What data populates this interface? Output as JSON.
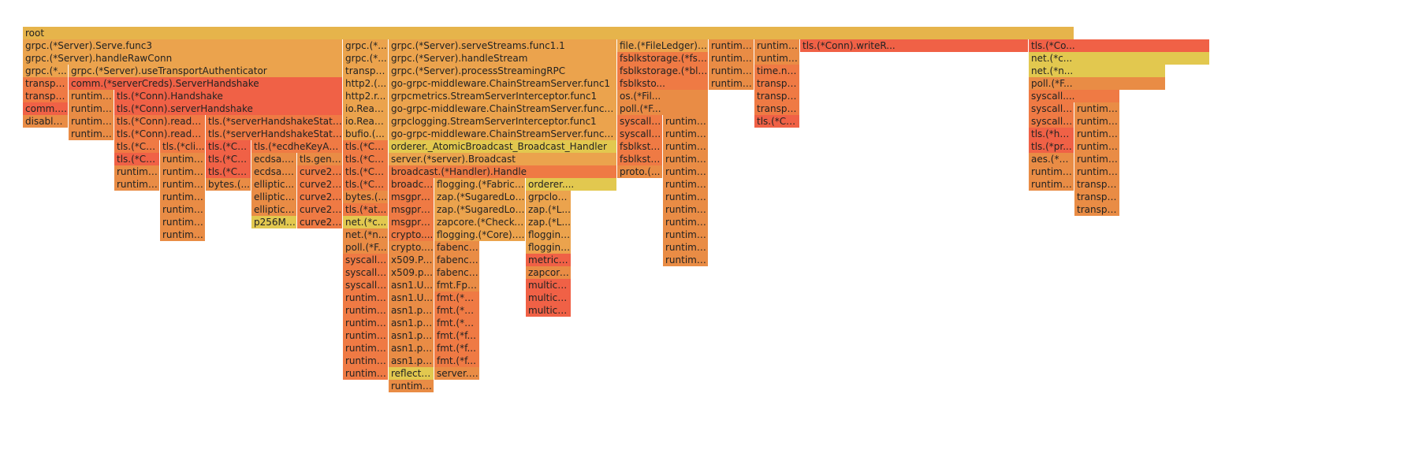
{
  "palette": {
    "gold": "#e6b44b",
    "lt": "#eba34d",
    "md": "#e98c45",
    "dk": "#ef7a44",
    "red": "#f06146",
    "yel": "#e2c84f"
  },
  "frames": [
    {
      "text": "root",
      "color": "gold"
    },
    {
      "text": "grpc.(*Server).Serve.func3",
      "color": "lt"
    },
    {
      "text": "grpc.(*Server).handleRawConn",
      "color": "lt"
    },
    {
      "text": "grpc.(*...",
      "color": "lt"
    },
    {
      "text": "transpo...",
      "color": "dk"
    },
    {
      "text": "transpo...",
      "color": "dk"
    },
    {
      "text": "comm.(...",
      "color": "red"
    },
    {
      "text": "disable...",
      "color": "md"
    },
    {
      "text": "grpc.(*Server).useTransportAuthenticator",
      "color": "lt"
    },
    {
      "text": "comm.(*serverCreds).ServerHandshake",
      "color": "red"
    },
    {
      "text": "runtime...",
      "color": "md"
    },
    {
      "text": "runtime...",
      "color": "md"
    },
    {
      "text": "runtime...",
      "color": "md"
    },
    {
      "text": "runtime...",
      "color": "md"
    },
    {
      "text": "tls.(*Conn).Handshake",
      "color": "red"
    },
    {
      "text": "tls.(*Conn).serverHandshake",
      "color": "red"
    },
    {
      "text": "tls.(*Conn).readCli...",
      "color": "dk"
    },
    {
      "text": "tls.(*Conn).readH...",
      "color": "dk"
    },
    {
      "text": "tls.(*Co...",
      "color": "dk"
    },
    {
      "text": "tls.(*Co...",
      "color": "red"
    },
    {
      "text": "runtime...",
      "color": "md"
    },
    {
      "text": "runtime...",
      "color": "md"
    },
    {
      "text": "tls.(*cli...",
      "color": "dk"
    },
    {
      "text": "runtime...",
      "color": "md"
    },
    {
      "text": "runtime...",
      "color": "md"
    },
    {
      "text": "runtime...",
      "color": "md"
    },
    {
      "text": "runtime...",
      "color": "md"
    },
    {
      "text": "runtime...",
      "color": "md"
    },
    {
      "text": "runtime...",
      "color": "md"
    },
    {
      "text": "runtime...",
      "color": "md"
    },
    {
      "text": "tls.(*serverHandshakeState)...",
      "color": "dk"
    },
    {
      "text": "tls.(*serverHandshakeState)....",
      "color": "dk"
    },
    {
      "text": "tls.(*Co...",
      "color": "red"
    },
    {
      "text": "tls.(*Co...",
      "color": "red"
    },
    {
      "text": "tls.(*Co...",
      "color": "red"
    },
    {
      "text": "bytes.(...",
      "color": "md"
    },
    {
      "text": "tls.(*ecdheKeyAgr...",
      "color": "dk"
    },
    {
      "text": "ecdsa.(...",
      "color": "md"
    },
    {
      "text": "ecdsa.S...",
      "color": "md"
    },
    {
      "text": "elliptic...",
      "color": "md"
    },
    {
      "text": "elliptic....",
      "color": "md"
    },
    {
      "text": "elliptic....",
      "color": "md"
    },
    {
      "text": "p256Mu...",
      "color": "yel"
    },
    {
      "text": "tls.gene...",
      "color": "md"
    },
    {
      "text": "curve25...",
      "color": "dk"
    },
    {
      "text": "curve25...",
      "color": "dk"
    },
    {
      "text": "curve25...",
      "color": "dk"
    },
    {
      "text": "curve25...",
      "color": "dk"
    },
    {
      "text": "curve25...",
      "color": "dk"
    },
    {
      "text": "grpc.(*...",
      "color": "lt"
    },
    {
      "text": "grpc.(*...",
      "color": "lt"
    },
    {
      "text": "transpo...",
      "color": "lt"
    },
    {
      "text": "http2.(...",
      "color": "lt"
    },
    {
      "text": "http2.r...",
      "color": "lt"
    },
    {
      "text": "io.Read...",
      "color": "lt"
    },
    {
      "text": "io.Read...",
      "color": "lt"
    },
    {
      "text": "bufio.(...",
      "color": "lt"
    },
    {
      "text": "tls.(*Co...",
      "color": "dk"
    },
    {
      "text": "tls.(*Co...",
      "color": "dk"
    },
    {
      "text": "tls.(*Co...",
      "color": "dk"
    },
    {
      "text": "tls.(*Co...",
      "color": "dk"
    },
    {
      "text": "bytes.(...",
      "color": "md"
    },
    {
      "text": "tls.(*at...",
      "color": "dk"
    },
    {
      "text": "net.(*c...",
      "color": "yel"
    },
    {
      "text": "net.(*n...",
      "color": "md"
    },
    {
      "text": "poll.(*F...",
      "color": "md"
    },
    {
      "text": "syscall....",
      "color": "dk"
    },
    {
      "text": "syscall....",
      "color": "dk"
    },
    {
      "text": "syscall....",
      "color": "dk"
    },
    {
      "text": "runtime...",
      "color": "dk"
    },
    {
      "text": "runtime...",
      "color": "dk"
    },
    {
      "text": "runtime...",
      "color": "dk"
    },
    {
      "text": "runtime...",
      "color": "dk"
    },
    {
      "text": "runtime...",
      "color": "dk"
    },
    {
      "text": "runtime...",
      "color": "dk"
    },
    {
      "text": "runtime...",
      "color": "dk"
    },
    {
      "text": "grpc.(*Server).serveStreams.func1.1",
      "color": "lt"
    },
    {
      "text": "grpc.(*Server).handleStream",
      "color": "lt"
    },
    {
      "text": "grpc.(*Server).processStreamingRPC",
      "color": "lt"
    },
    {
      "text": "go-grpc-middleware.ChainStreamServer.func1",
      "color": "lt"
    },
    {
      "text": "grpcmetrics.StreamServerInterceptor.func1",
      "color": "lt"
    },
    {
      "text": "go-grpc-middleware.ChainStreamServer.func1.1",
      "color": "lt"
    },
    {
      "text": "grpclogging.StreamServerInterceptor.func1",
      "color": "lt"
    },
    {
      "text": "go-grpc-middleware.ChainStreamServer.func1.1",
      "color": "lt"
    },
    {
      "text": "orderer._AtomicBroadcast_Broadcast_Handler",
      "color": "yel"
    },
    {
      "text": "server.(*server).Broadcast",
      "color": "lt"
    },
    {
      "text": "broadcast.(*Handler).Handle",
      "color": "dk"
    },
    {
      "text": "broadca...",
      "color": "dk"
    },
    {
      "text": "msgpro...",
      "color": "dk"
    },
    {
      "text": "msgpro...",
      "color": "dk"
    },
    {
      "text": "msgpro...",
      "color": "dk"
    },
    {
      "text": "crypto....",
      "color": "dk"
    },
    {
      "text": "crypto.c...",
      "color": "md"
    },
    {
      "text": "x509.Pa...",
      "color": "md"
    },
    {
      "text": "x509.p...",
      "color": "md"
    },
    {
      "text": "asn1.U...",
      "color": "md"
    },
    {
      "text": "asn1.U...",
      "color": "md"
    },
    {
      "text": "asn1.pa...",
      "color": "md"
    },
    {
      "text": "asn1.pa...",
      "color": "md"
    },
    {
      "text": "asn1.pa...",
      "color": "md"
    },
    {
      "text": "asn1.pa...",
      "color": "md"
    },
    {
      "text": "asn1.pa...",
      "color": "md"
    },
    {
      "text": "reflect.(...",
      "color": "yel"
    },
    {
      "text": "runtime...",
      "color": "md"
    },
    {
      "text": "flogging.(*FabricL...",
      "color": "lt"
    },
    {
      "text": "zap.(*SugaredLog...",
      "color": "lt"
    },
    {
      "text": "zap.(*SugaredLog...",
      "color": "lt"
    },
    {
      "text": "zapcore.(*Checke...",
      "color": "lt"
    },
    {
      "text": "flogging.(*Core).W...",
      "color": "lt"
    },
    {
      "text": "fabenc....",
      "color": "md"
    },
    {
      "text": "fabenc....",
      "color": "md"
    },
    {
      "text": "fabenc....",
      "color": "md"
    },
    {
      "text": "fmt.Fpri...",
      "color": "md"
    },
    {
      "text": "fmt.(*p...",
      "color": "dk"
    },
    {
      "text": "fmt.(*p...",
      "color": "dk"
    },
    {
      "text": "fmt.(*p...",
      "color": "dk"
    },
    {
      "text": "fmt.(*f...",
      "color": "dk"
    },
    {
      "text": "fmt.(*f...",
      "color": "dk"
    },
    {
      "text": "fmt.(*f...",
      "color": "dk"
    },
    {
      "text": "server.(*broadcast...",
      "color": "md"
    },
    {
      "text": "orderer....",
      "color": "yel"
    },
    {
      "text": "grpclog...",
      "color": "lt"
    },
    {
      "text": "zap.(*L...",
      "color": "lt"
    },
    {
      "text": "zap.(*L...",
      "color": "lt"
    },
    {
      "text": "flogging...",
      "color": "lt"
    },
    {
      "text": "flogging...",
      "color": "lt"
    },
    {
      "text": "metrics....",
      "color": "red"
    },
    {
      "text": "zapcore....",
      "color": "md"
    },
    {
      "text": "multichannel.(*Blo...",
      "color": "red"
    },
    {
      "text": "multichannel.(*Blo...",
      "color": "red"
    },
    {
      "text": "multichannel.(*Ch...",
      "color": "red"
    },
    {
      "text": "file.(*FileLedger).A...",
      "color": "lt"
    },
    {
      "text": "fsblkstorage.(*fsBl...",
      "color": "dk"
    },
    {
      "text": "fsblkstorage.(*bloc...",
      "color": "dk"
    },
    {
      "text": "fsblksto...",
      "color": "dk"
    },
    {
      "text": "os.(*Fil...",
      "color": "md"
    },
    {
      "text": "poll.(*F...",
      "color": "md"
    },
    {
      "text": "syscall....",
      "color": "dk"
    },
    {
      "text": "syscall....",
      "color": "dk"
    },
    {
      "text": "fsblksto...",
      "color": "dk"
    },
    {
      "text": "fsblksto...",
      "color": "dk"
    },
    {
      "text": "proto.(...",
      "color": "md"
    },
    {
      "text": "runtime...",
      "color": "md"
    },
    {
      "text": "runtime...",
      "color": "md"
    },
    {
      "text": "runtime...",
      "color": "md"
    },
    {
      "text": "runtime...",
      "color": "md"
    },
    {
      "text": "runtime...",
      "color": "md"
    },
    {
      "text": "runtime...",
      "color": "md"
    },
    {
      "text": "runtime...",
      "color": "md"
    },
    {
      "text": "runtime...",
      "color": "md"
    },
    {
      "text": "runtime...",
      "color": "md"
    },
    {
      "text": "runtime...",
      "color": "md"
    },
    {
      "text": "runtime...",
      "color": "md"
    },
    {
      "text": "runtime...",
      "color": "md"
    },
    {
      "text": "runtime...",
      "color": "md"
    },
    {
      "text": "runtime...",
      "color": "md"
    },
    {
      "text": "runtime...",
      "color": "md"
    },
    {
      "text": "runtime...",
      "color": "md"
    },
    {
      "text": "runtime...",
      "color": "md"
    },
    {
      "text": "runtime...",
      "color": "md"
    },
    {
      "text": "time.now",
      "color": "dk"
    },
    {
      "text": "transport.newHTTP2Server.func2",
      "color": "dk"
    },
    {
      "text": "transport.(*loopyWriter).run",
      "color": "dk"
    },
    {
      "text": "transport.(*bufWriter).Flush",
      "color": "dk"
    },
    {
      "text": "tls.(*Conn).Write",
      "color": "red"
    },
    {
      "text": "tls.(*Conn).writeR...",
      "color": "red"
    },
    {
      "text": "tls.(*Co...",
      "color": "red"
    },
    {
      "text": "net.(*c...",
      "color": "yel"
    },
    {
      "text": "net.(*n...",
      "color": "yel"
    },
    {
      "text": "poll.(*F...",
      "color": "md"
    },
    {
      "text": "syscall....",
      "color": "dk"
    },
    {
      "text": "syscall....",
      "color": "dk"
    },
    {
      "text": "syscall....",
      "color": "dk"
    },
    {
      "text": "tls.(*ha...",
      "color": "red"
    },
    {
      "text": "tls.(*pr...",
      "color": "red"
    },
    {
      "text": "aes.(*g...",
      "color": "md"
    },
    {
      "text": "runtime...",
      "color": "md"
    },
    {
      "text": "runtime...",
      "color": "md"
    },
    {
      "text": "runtime...",
      "color": "md"
    },
    {
      "text": "runtime...",
      "color": "md"
    },
    {
      "text": "runtime...",
      "color": "md"
    },
    {
      "text": "runtime...",
      "color": "md"
    },
    {
      "text": "runtime...",
      "color": "md"
    },
    {
      "text": "runtime...",
      "color": "md"
    },
    {
      "text": "transpo...",
      "color": "md"
    },
    {
      "text": "transpo...",
      "color": "md"
    },
    {
      "text": "transpo...",
      "color": "md"
    }
  ]
}
